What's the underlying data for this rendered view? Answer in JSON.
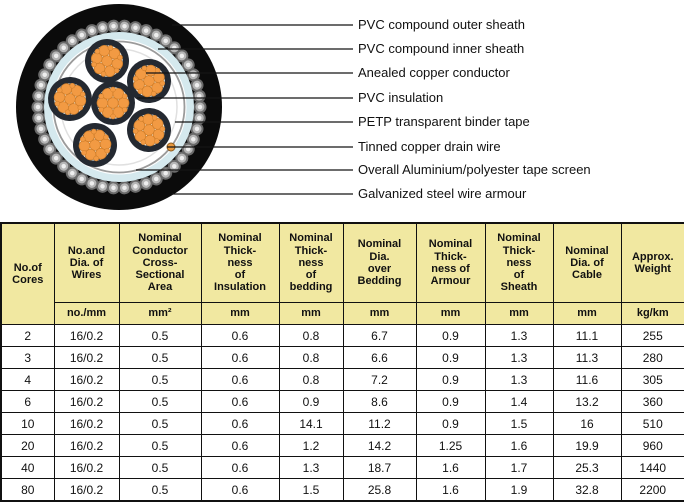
{
  "diagram": {
    "labels": [
      "PVC compound outer sheath",
      "PVC compound inner sheath",
      "Anealed copper conductor",
      "PVC insulation",
      "PETP transparent binder tape",
      "Tinned copper drain wire",
      "Overall Aluminium/polyester tape screen",
      "Galvanized steel wire armour"
    ],
    "colors": {
      "outer_sheath_black": "#0b0b0b",
      "armour_bead_gray": "#b5b5b5",
      "inner_sheath_cyan": "#d5e9ee",
      "copper_orange": "#f29a43",
      "insulation_dark": "#242931",
      "tape_screen_gray": "#9b9b9b",
      "drain_wire_orange": "#e8993f",
      "binder_tape_light": "#e0e0e0"
    }
  },
  "table": {
    "header_bg": "#f1e8a1",
    "columns": [
      {
        "name": "No.of\nCores",
        "unit": ""
      },
      {
        "name": "No.and\nDia. of\nWires",
        "unit": "no./mm"
      },
      {
        "name": "Nominal\nConductor\nCross-\nSectional\nArea",
        "unit": "mm²"
      },
      {
        "name": "Nominal\nThick-\nness\nof\nInsulation",
        "unit": "mm"
      },
      {
        "name": "Nominal\nThick-\nness\nof\nbedding",
        "unit": "mm"
      },
      {
        "name": "Nominal\nDia.\nover\nBedding",
        "unit": "mm"
      },
      {
        "name": "Nominal\nThick-\nness of\nArmour",
        "unit": "mm"
      },
      {
        "name": "Nominal\nThick-\nness\nof\nSheath",
        "unit": "mm"
      },
      {
        "name": "Nominal\nDia. of\nCable",
        "unit": "mm"
      },
      {
        "name": "Approx.\nWeight",
        "unit": "kg/km"
      }
    ],
    "rows": [
      [
        "2",
        "16/0.2",
        "0.5",
        "0.6",
        "0.8",
        "6.7",
        "0.9",
        "1.3",
        "11.1",
        "255"
      ],
      [
        "3",
        "16/0.2",
        "0.5",
        "0.6",
        "0.8",
        "6.6",
        "0.9",
        "1.3",
        "11.3",
        "280"
      ],
      [
        "4",
        "16/0.2",
        "0.5",
        "0.6",
        "0.8",
        "7.2",
        "0.9",
        "1.3",
        "11.6",
        "305"
      ],
      [
        "6",
        "16/0.2",
        "0.5",
        "0.6",
        "0.9",
        "8.6",
        "0.9",
        "1.4",
        "13.2",
        "360"
      ],
      [
        "10",
        "16/0.2",
        "0.5",
        "0.6",
        "14.1",
        "11.2",
        "0.9",
        "1.5",
        "16",
        "510"
      ],
      [
        "20",
        "16/0.2",
        "0.5",
        "0.6",
        "1.2",
        "14.2",
        "1.25",
        "1.6",
        "19.9",
        "960"
      ],
      [
        "40",
        "16/0.2",
        "0.5",
        "0.6",
        "1.3",
        "18.7",
        "1.6",
        "1.7",
        "25.3",
        "1440"
      ],
      [
        "80",
        "16/0.2",
        "0.5",
        "0.6",
        "1.5",
        "25.8",
        "1.6",
        "1.9",
        "32.8",
        "2200"
      ]
    ]
  }
}
